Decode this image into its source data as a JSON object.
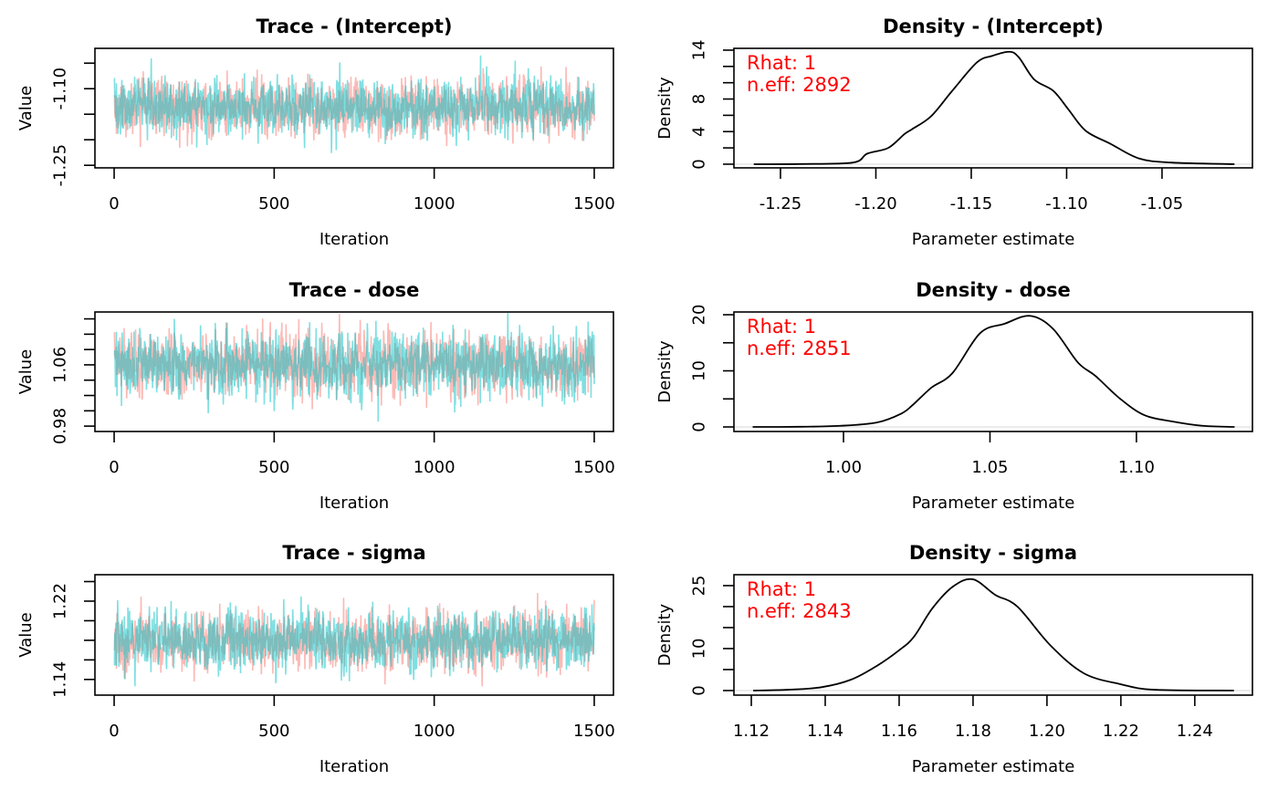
{
  "chart_data": [
    {
      "type": "line",
      "title": "Trace - (Intercept)",
      "xlabel": "Iteration",
      "ylabel": "Value",
      "xlim": [
        -60,
        1560
      ],
      "ylim": [
        -1.255,
        -1.021
      ],
      "x_ticks": [
        {
          "value": 0,
          "label": "0"
        },
        {
          "value": 500,
          "label": "500"
        },
        {
          "value": 1000,
          "label": "1000"
        },
        {
          "value": 1500,
          "label": "1500"
        }
      ],
      "y_ticks": [
        {
          "value": -1.05,
          "label": ""
        },
        {
          "value": -1.1,
          "label": "-1.10"
        },
        {
          "value": -1.15,
          "label": ""
        },
        {
          "value": -1.2,
          "label": ""
        },
        {
          "value": -1.25,
          "label": "-1.25"
        }
      ],
      "iterations": 1500,
      "opacity": 0.5,
      "series": [
        {
          "chain": 1,
          "color": "#F8766D",
          "mean": -1.137,
          "sd": 0.028
        },
        {
          "chain": 2,
          "color": "#00BFC4",
          "mean": -1.137,
          "sd": 0.028
        }
      ]
    },
    {
      "type": "line",
      "title": "Density - (Intercept)",
      "xlabel": "Parameter estimate",
      "ylabel": "Density",
      "xlim": [
        -1.2744,
        -1.0026
      ],
      "ylim": [
        -0.45,
        14.22
      ],
      "x_ticks": [
        {
          "value": -1.25,
          "label": "-1.25"
        },
        {
          "value": -1.2,
          "label": "-1.20"
        },
        {
          "value": -1.15,
          "label": "-1.15"
        },
        {
          "value": -1.1,
          "label": "-1.10"
        },
        {
          "value": -1.05,
          "label": "-1.05"
        }
      ],
      "y_ticks": [
        {
          "value": 0,
          "label": "0"
        },
        {
          "value": 2,
          "label": ""
        },
        {
          "value": 4,
          "label": "4"
        },
        {
          "value": 6,
          "label": ""
        },
        {
          "value": 8,
          "label": "8"
        },
        {
          "value": 10,
          "label": ""
        },
        {
          "value": 12,
          "label": ""
        },
        {
          "value": 14,
          "label": "14"
        }
      ],
      "color": "#000000",
      "x": [
        -1.264,
        -1.24,
        -1.212,
        -1.2045,
        -1.1935,
        -1.185,
        -1.181,
        -1.171,
        -1.16,
        -1.147,
        -1.139,
        -1.13,
        -1.125,
        -1.117,
        -1.107,
        -1.099,
        -1.09,
        -1.077,
        -1.062,
        -1.045,
        -1.012
      ],
      "y": [
        0,
        0.02,
        0.2,
        1.3,
        2.0,
        3.7,
        4.3,
        5.9,
        9.0,
        12.5,
        13.3,
        13.8,
        13.1,
        10.4,
        9.0,
        6.7,
        4.1,
        2.5,
        0.7,
        0.2,
        0
      ],
      "annotations": [
        "Rhat: 1",
        "n.eff: 2892"
      ],
      "annotation_color": "#FF0000"
    },
    {
      "type": "line",
      "title": "Trace - dose",
      "xlabel": "Iteration",
      "ylabel": "Value",
      "xlim": [
        -60,
        1560
      ],
      "ylim": [
        0.973,
        1.129
      ],
      "x_ticks": [
        {
          "value": 0,
          "label": "0"
        },
        {
          "value": 500,
          "label": "500"
        },
        {
          "value": 1000,
          "label": "1000"
        },
        {
          "value": 1500,
          "label": "1500"
        }
      ],
      "y_ticks": [
        {
          "value": 0.98,
          "label": "0.98"
        },
        {
          "value": 1.0,
          "label": ""
        },
        {
          "value": 1.02,
          "label": ""
        },
        {
          "value": 1.04,
          "label": ""
        },
        {
          "value": 1.06,
          "label": "1.06"
        },
        {
          "value": 1.08,
          "label": ""
        },
        {
          "value": 1.1,
          "label": ""
        },
        {
          "value": 1.12,
          "label": ""
        }
      ],
      "iterations": 1500,
      "opacity": 0.5,
      "series": [
        {
          "chain": 1,
          "color": "#F8766D",
          "mean": 1.06,
          "sd": 0.021
        },
        {
          "chain": 2,
          "color": "#00BFC4",
          "mean": 1.06,
          "sd": 0.021
        }
      ]
    },
    {
      "type": "line",
      "title": "Density - dose",
      "xlabel": "Parameter estimate",
      "ylabel": "Density",
      "xlim": [
        0.9626,
        1.1396
      ],
      "ylim": [
        -0.81,
        20.49
      ],
      "x_ticks": [
        {
          "value": 1.0,
          "label": "1.00"
        },
        {
          "value": 1.05,
          "label": "1.05"
        },
        {
          "value": 1.1,
          "label": "1.10"
        }
      ],
      "y_ticks": [
        {
          "value": 0,
          "label": "0"
        },
        {
          "value": 5,
          "label": ""
        },
        {
          "value": 10,
          "label": "10"
        },
        {
          "value": 15,
          "label": ""
        },
        {
          "value": 20,
          "label": "20"
        }
      ],
      "color": "#000000",
      "x": [
        0.969,
        0.985,
        0.9988,
        1.0114,
        1.0198,
        1.0238,
        1.03,
        1.0372,
        1.0466,
        1.055,
        1.0637,
        1.0715,
        1.08,
        1.086,
        1.0945,
        1.1027,
        1.112,
        1.1226,
        1.1335
      ],
      "y": [
        0,
        0.03,
        0.2,
        0.8,
        2.4,
        4.0,
        7.0,
        9.6,
        16.7,
        18.4,
        19.8,
        17.5,
        11.5,
        9.1,
        5.0,
        2.1,
        1.0,
        0.2,
        0
      ],
      "annotations": [
        "Rhat: 1",
        "n.eff: 2851"
      ],
      "annotation_color": "#FF0000"
    },
    {
      "type": "line",
      "title": "Trace - sigma",
      "xlabel": "Iteration",
      "ylabel": "Value",
      "xlim": [
        -60,
        1560
      ],
      "ylim": [
        1.124,
        1.247
      ],
      "x_ticks": [
        {
          "value": 0,
          "label": "0"
        },
        {
          "value": 500,
          "label": "500"
        },
        {
          "value": 1000,
          "label": "1000"
        },
        {
          "value": 1500,
          "label": "1500"
        }
      ],
      "y_ticks": [
        {
          "value": 1.14,
          "label": "1.14"
        },
        {
          "value": 1.16,
          "label": ""
        },
        {
          "value": 1.18,
          "label": ""
        },
        {
          "value": 1.2,
          "label": ""
        },
        {
          "value": 1.22,
          "label": "1.22"
        },
        {
          "value": 1.24,
          "label": ""
        }
      ],
      "iterations": 1500,
      "opacity": 0.5,
      "series": [
        {
          "chain": 1,
          "color": "#F8766D",
          "mean": 1.18,
          "sd": 0.015
        },
        {
          "chain": 2,
          "color": "#00BFC4",
          "mean": 1.18,
          "sd": 0.015
        }
      ]
    },
    {
      "type": "line",
      "title": "Density - sigma",
      "xlabel": "Parameter estimate",
      "ylabel": "Density",
      "xlim": [
        1.1153,
        1.2556
      ],
      "ylim": [
        -1.09,
        27.6
      ],
      "x_ticks": [
        {
          "value": 1.12,
          "label": "1.12"
        },
        {
          "value": 1.14,
          "label": "1.14"
        },
        {
          "value": 1.16,
          "label": "1.16"
        },
        {
          "value": 1.18,
          "label": "1.18"
        },
        {
          "value": 1.2,
          "label": "1.20"
        },
        {
          "value": 1.22,
          "label": "1.22"
        },
        {
          "value": 1.24,
          "label": "1.24"
        }
      ],
      "y_ticks": [
        {
          "value": 0,
          "label": "0"
        },
        {
          "value": 5,
          "label": ""
        },
        {
          "value": 10,
          "label": "10"
        },
        {
          "value": 15,
          "label": ""
        },
        {
          "value": 20,
          "label": ""
        },
        {
          "value": 25,
          "label": "25"
        }
      ],
      "color": "#000000",
      "x": [
        1.1205,
        1.13,
        1.139,
        1.147,
        1.154,
        1.16,
        1.164,
        1.169,
        1.1746,
        1.18,
        1.186,
        1.192,
        1.201,
        1.21,
        1.22,
        1.229,
        1.2506
      ],
      "y": [
        0,
        0.2,
        0.8,
        2.6,
        5.9,
        9.6,
        12.8,
        19.6,
        24.8,
        26.5,
        22.8,
        20.0,
        10.7,
        4.1,
        1.5,
        0.2,
        0
      ],
      "annotations": [
        "Rhat: 1",
        "n.eff: 2843"
      ],
      "annotation_color": "#FF0000"
    }
  ]
}
